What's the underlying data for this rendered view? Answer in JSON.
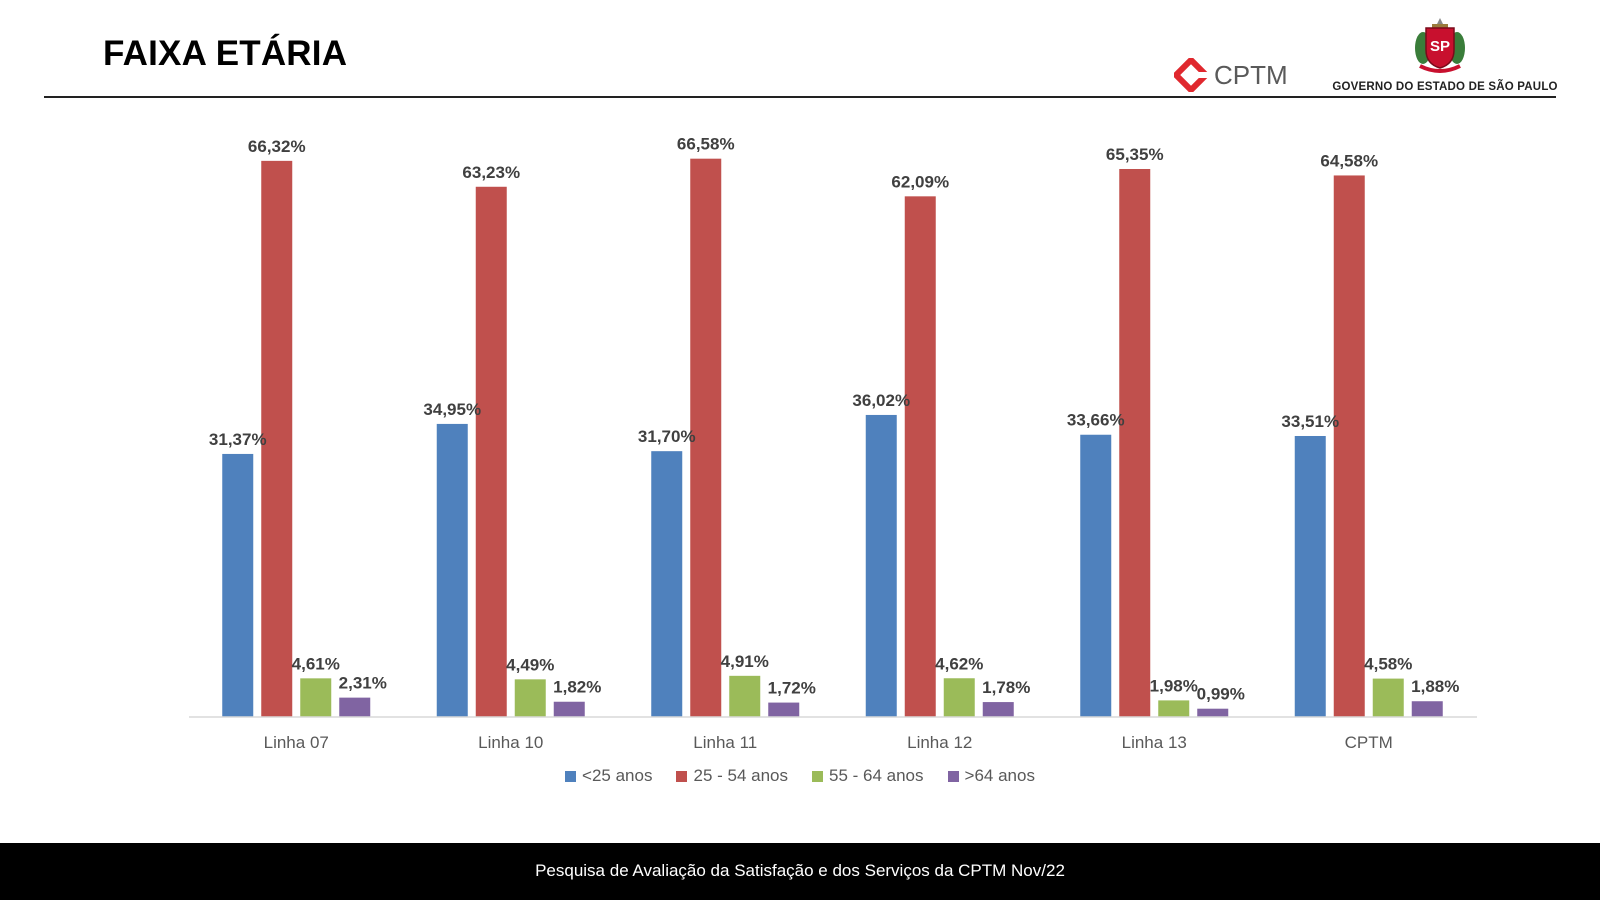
{
  "page": {
    "title": "FAIXA ETÁRIA",
    "cptm_logo_text": "CPTM",
    "gov_logo_text": "GOVERNO DO ESTADO DE SÃO PAULO",
    "seal_text": "SP",
    "footer": "Pesquisa de Avaliação da Satisfação e dos Serviços da CPTM Nov/22"
  },
  "colors": {
    "series": [
      "#4F81BD",
      "#C0504D",
      "#9BBB59",
      "#8064A2"
    ],
    "cptm_red": "#E0282E",
    "footer_bg": "#000000"
  },
  "chart_data": {
    "type": "bar",
    "categories": [
      "Linha 07",
      "Linha 10",
      "Linha 11",
      "Linha 12",
      "Linha 13",
      "CPTM"
    ],
    "series": [
      {
        "name": "<25 anos",
        "values": [
          31.37,
          34.95,
          31.7,
          36.02,
          33.66,
          33.51
        ]
      },
      {
        "name": "25 - 54 anos",
        "values": [
          66.32,
          63.23,
          66.58,
          62.09,
          65.35,
          64.58
        ]
      },
      {
        "name": "55 - 64 anos",
        "values": [
          4.61,
          4.49,
          4.91,
          4.62,
          1.98,
          4.58
        ]
      },
      {
        "name": ">64 anos",
        "values": [
          2.31,
          1.82,
          1.72,
          1.78,
          0.99,
          1.88
        ]
      }
    ],
    "data_labels": [
      [
        "31,37%",
        "34,95%",
        "31,70%",
        "36,02%",
        "33,66%",
        "33,51%"
      ],
      [
        "66,32%",
        "63,23%",
        "66,58%",
        "62,09%",
        "65,35%",
        "64,58%"
      ],
      [
        "4,61%",
        "4,49%",
        "4,91%",
        "4,62%",
        "1,98%",
        "4,58%"
      ],
      [
        "2,31%",
        "1,82%",
        "1,72%",
        "1,78%",
        "0,99%",
        "1,88%"
      ]
    ],
    "ylim": [
      0,
      70
    ],
    "grid": false,
    "legend": "bottom"
  }
}
